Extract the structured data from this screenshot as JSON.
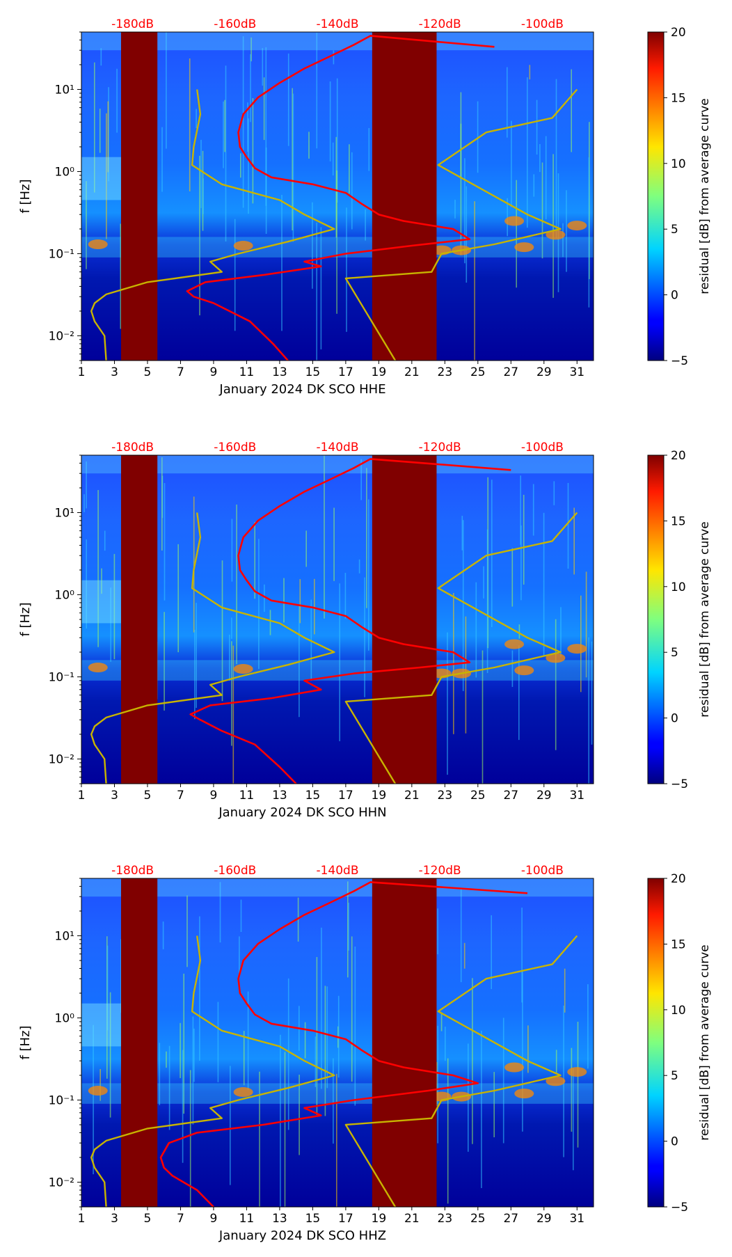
{
  "chart_data": [
    {
      "type": "heatmap",
      "title": "",
      "xlabel": "January 2024 DK SCO  HHE",
      "ylabel": "f [Hz]",
      "colorbar_label": "residual [dB] from average curve",
      "colorbar_ticks": [
        "−5",
        "0",
        "5",
        "10",
        "15",
        "20"
      ],
      "colorbar_range": [
        -5,
        20
      ],
      "colormap": "jet",
      "xlim": [
        1,
        32
      ],
      "x_ticks": [
        "1",
        "3",
        "5",
        "7",
        "9",
        "11",
        "13",
        "15",
        "17",
        "19",
        "21",
        "23",
        "25",
        "27",
        "29",
        "31"
      ],
      "ylim": [
        0.005,
        50
      ],
      "y_scale": "log",
      "y_ticks": [
        "10⁻²",
        "10⁻¹",
        "10⁰",
        "10¹"
      ],
      "top_axis_labels": [
        "-180dB",
        "-160dB",
        "-140dB",
        "-120dB",
        "-100dB"
      ],
      "top_axis_color": "#ff0000",
      "data_gaps_days": [
        [
          3.4,
          5.6
        ],
        [
          18.6,
          22.5
        ]
      ],
      "series": [
        {
          "color": "#ff0000",
          "points": [
            [
              13.5,
              0.005
            ],
            [
              12.6,
              0.008
            ],
            [
              11.2,
              0.015
            ],
            [
              9.0,
              0.025
            ],
            [
              7.8,
              0.03
            ],
            [
              7.4,
              0.035
            ],
            [
              8.5,
              0.045
            ],
            [
              12.0,
              0.055
            ],
            [
              15.5,
              0.07
            ],
            [
              14.5,
              0.08
            ],
            [
              17.0,
              0.1
            ],
            [
              21.0,
              0.125
            ],
            [
              24.5,
              0.15
            ],
            [
              23.5,
              0.2
            ],
            [
              20.5,
              0.25
            ],
            [
              19.0,
              0.3
            ],
            [
              18.0,
              0.4
            ],
            [
              17.0,
              0.55
            ],
            [
              15.0,
              0.7
            ],
            [
              12.5,
              0.85
            ],
            [
              11.5,
              1.1
            ],
            [
              11.0,
              1.5
            ],
            [
              10.6,
              2.0
            ],
            [
              10.5,
              3.0
            ],
            [
              10.8,
              5.0
            ],
            [
              11.7,
              8.0
            ],
            [
              13.0,
              12.0
            ],
            [
              14.5,
              18.0
            ],
            [
              16.0,
              25.0
            ],
            [
              17.5,
              35.0
            ],
            [
              18.5,
              45.0
            ],
            [
              26.0,
              33.0
            ]
          ]
        },
        {
          "color": "#c8b400",
          "points": [
            [
              2.5,
              0.005
            ],
            [
              2.4,
              0.01
            ],
            [
              1.8,
              0.015
            ],
            [
              1.6,
              0.02
            ],
            [
              1.8,
              0.025
            ],
            [
              2.5,
              0.032
            ],
            [
              5.0,
              0.045
            ],
            [
              9.5,
              0.06
            ],
            [
              8.8,
              0.08
            ],
            [
              10.5,
              0.1
            ],
            [
              13.5,
              0.14
            ],
            [
              16.3,
              0.2
            ],
            [
              14.5,
              0.3
            ],
            [
              13.0,
              0.45
            ],
            [
              9.5,
              0.7
            ],
            [
              7.7,
              1.2
            ],
            [
              7.8,
              2.0
            ],
            [
              8.2,
              5.0
            ],
            [
              8.0,
              10.0
            ]
          ]
        },
        {
          "color": "#c8b400",
          "points": [
            [
              20.0,
              0.005
            ],
            [
              17.0,
              0.05
            ],
            [
              22.2,
              0.06
            ],
            [
              22.8,
              0.1
            ],
            [
              26.0,
              0.13
            ],
            [
              30.0,
              0.2
            ],
            [
              28.0,
              0.3
            ],
            [
              22.6,
              1.2
            ],
            [
              25.5,
              3.0
            ],
            [
              29.5,
              4.5
            ],
            [
              31.0,
              10.0
            ]
          ]
        }
      ]
    },
    {
      "type": "heatmap",
      "title": "",
      "xlabel": "January 2024 DK SCO  HHN",
      "ylabel": "f [Hz]",
      "colorbar_label": "residual [dB] from average curve",
      "colorbar_ticks": [
        "−5",
        "0",
        "5",
        "10",
        "15",
        "20"
      ],
      "colorbar_range": [
        -5,
        20
      ],
      "colormap": "jet",
      "xlim": [
        1,
        32
      ],
      "x_ticks": [
        "1",
        "3",
        "5",
        "7",
        "9",
        "11",
        "13",
        "15",
        "17",
        "19",
        "21",
        "23",
        "25",
        "27",
        "29",
        "31"
      ],
      "ylim": [
        0.005,
        50
      ],
      "y_scale": "log",
      "y_ticks": [
        "10⁻²",
        "10⁻¹",
        "10⁰",
        "10¹"
      ],
      "top_axis_labels": [
        "-180dB",
        "-160dB",
        "-140dB",
        "-120dB",
        "-100dB"
      ],
      "top_axis_color": "#ff0000",
      "data_gaps_days": [
        [
          3.4,
          5.6
        ],
        [
          18.6,
          22.5
        ]
      ],
      "series": [
        {
          "color": "#ff0000",
          "points": [
            [
              14.0,
              0.005
            ],
            [
              13.0,
              0.008
            ],
            [
              11.5,
              0.015
            ],
            [
              9.5,
              0.022
            ],
            [
              8.2,
              0.03
            ],
            [
              7.6,
              0.035
            ],
            [
              8.8,
              0.045
            ],
            [
              12.5,
              0.055
            ],
            [
              15.5,
              0.07
            ],
            [
              14.5,
              0.09
            ],
            [
              17.5,
              0.11
            ],
            [
              21.5,
              0.13
            ],
            [
              24.5,
              0.15
            ],
            [
              23.5,
              0.2
            ],
            [
              20.5,
              0.25
            ],
            [
              19.0,
              0.3
            ],
            [
              18.0,
              0.4
            ],
            [
              17.0,
              0.55
            ],
            [
              15.0,
              0.7
            ],
            [
              12.5,
              0.85
            ],
            [
              11.5,
              1.1
            ],
            [
              11.0,
              1.5
            ],
            [
              10.6,
              2.0
            ],
            [
              10.5,
              3.0
            ],
            [
              10.8,
              5.0
            ],
            [
              11.7,
              8.0
            ],
            [
              13.0,
              12.0
            ],
            [
              14.5,
              18.0
            ],
            [
              16.0,
              25.0
            ],
            [
              17.5,
              35.0
            ],
            [
              18.5,
              45.0
            ],
            [
              27.0,
              33.0
            ]
          ]
        },
        {
          "color": "#c8b400",
          "points": [
            [
              2.5,
              0.005
            ],
            [
              2.4,
              0.01
            ],
            [
              1.8,
              0.015
            ],
            [
              1.6,
              0.02
            ],
            [
              1.8,
              0.025
            ],
            [
              2.5,
              0.032
            ],
            [
              5.0,
              0.045
            ],
            [
              9.5,
              0.06
            ],
            [
              8.8,
              0.08
            ],
            [
              10.5,
              0.1
            ],
            [
              13.5,
              0.14
            ],
            [
              16.3,
              0.2
            ],
            [
              14.5,
              0.3
            ],
            [
              13.0,
              0.45
            ],
            [
              9.5,
              0.7
            ],
            [
              7.7,
              1.2
            ],
            [
              7.8,
              2.0
            ],
            [
              8.2,
              5.0
            ],
            [
              8.0,
              10.0
            ]
          ]
        },
        {
          "color": "#c8b400",
          "points": [
            [
              20.0,
              0.005
            ],
            [
              17.0,
              0.05
            ],
            [
              22.2,
              0.06
            ],
            [
              22.8,
              0.1
            ],
            [
              26.0,
              0.13
            ],
            [
              30.0,
              0.2
            ],
            [
              28.0,
              0.3
            ],
            [
              22.6,
              1.2
            ],
            [
              25.5,
              3.0
            ],
            [
              29.5,
              4.5
            ],
            [
              31.0,
              10.0
            ]
          ]
        }
      ]
    },
    {
      "type": "heatmap",
      "title": "",
      "xlabel": "January 2024 DK SCO  HHZ",
      "ylabel": "f [Hz]",
      "colorbar_label": "residual [dB] from average curve",
      "colorbar_ticks": [
        "−5",
        "0",
        "5",
        "10",
        "15",
        "20"
      ],
      "colorbar_range": [
        -5,
        20
      ],
      "colormap": "jet",
      "xlim": [
        1,
        32
      ],
      "x_ticks": [
        "1",
        "3",
        "5",
        "7",
        "9",
        "11",
        "13",
        "15",
        "17",
        "19",
        "21",
        "23",
        "25",
        "27",
        "29",
        "31"
      ],
      "ylim": [
        0.005,
        50
      ],
      "y_scale": "log",
      "y_ticks": [
        "10⁻²",
        "10⁻¹",
        "10⁰",
        "10¹"
      ],
      "top_axis_labels": [
        "-180dB",
        "-160dB",
        "-140dB",
        "-120dB",
        "-100dB"
      ],
      "top_axis_color": "#ff0000",
      "data_gaps_days": [
        [
          3.4,
          5.6
        ],
        [
          18.6,
          22.5
        ]
      ],
      "series": [
        {
          "color": "#ff0000",
          "points": [
            [
              9.0,
              0.005
            ],
            [
              8.0,
              0.008
            ],
            [
              6.5,
              0.012
            ],
            [
              6.0,
              0.015
            ],
            [
              5.8,
              0.02
            ],
            [
              6.3,
              0.03
            ],
            [
              8.0,
              0.04
            ],
            [
              12.0,
              0.05
            ],
            [
              15.5,
              0.065
            ],
            [
              14.5,
              0.08
            ],
            [
              17.5,
              0.1
            ],
            [
              22.0,
              0.13
            ],
            [
              25.0,
              0.16
            ],
            [
              23.5,
              0.2
            ],
            [
              20.5,
              0.25
            ],
            [
              19.0,
              0.3
            ],
            [
              18.0,
              0.4
            ],
            [
              17.0,
              0.55
            ],
            [
              15.0,
              0.7
            ],
            [
              12.5,
              0.85
            ],
            [
              11.5,
              1.1
            ],
            [
              11.0,
              1.5
            ],
            [
              10.6,
              2.0
            ],
            [
              10.5,
              3.0
            ],
            [
              10.8,
              5.0
            ],
            [
              11.7,
              8.0
            ],
            [
              13.0,
              12.0
            ],
            [
              14.5,
              18.0
            ],
            [
              16.0,
              25.0
            ],
            [
              17.5,
              35.0
            ],
            [
              18.5,
              45.0
            ],
            [
              28.0,
              33.0
            ]
          ]
        },
        {
          "color": "#c8b400",
          "points": [
            [
              2.5,
              0.005
            ],
            [
              2.4,
              0.01
            ],
            [
              1.8,
              0.015
            ],
            [
              1.6,
              0.02
            ],
            [
              1.8,
              0.025
            ],
            [
              2.5,
              0.032
            ],
            [
              5.0,
              0.045
            ],
            [
              9.5,
              0.06
            ],
            [
              8.8,
              0.08
            ],
            [
              10.5,
              0.1
            ],
            [
              13.5,
              0.14
            ],
            [
              16.3,
              0.2
            ],
            [
              14.5,
              0.3
            ],
            [
              13.0,
              0.45
            ],
            [
              9.5,
              0.7
            ],
            [
              7.7,
              1.2
            ],
            [
              7.8,
              2.0
            ],
            [
              8.2,
              5.0
            ],
            [
              8.0,
              10.0
            ]
          ]
        },
        {
          "color": "#c8b400",
          "points": [
            [
              20.0,
              0.005
            ],
            [
              17.0,
              0.05
            ],
            [
              22.2,
              0.06
            ],
            [
              22.8,
              0.1
            ],
            [
              26.0,
              0.13
            ],
            [
              30.0,
              0.2
            ],
            [
              28.0,
              0.3
            ],
            [
              22.6,
              1.2
            ],
            [
              25.5,
              3.0
            ],
            [
              29.5,
              4.5
            ],
            [
              31.0,
              10.0
            ]
          ]
        }
      ]
    }
  ]
}
